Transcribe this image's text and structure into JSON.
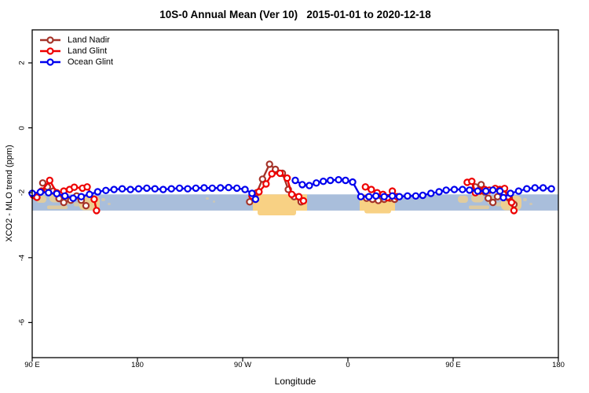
{
  "chart_data": {
    "type": "line",
    "title": "10S-0 Annual Mean (Ver 10)   2015-01-01 to 2020-12-18",
    "xlabel": "Longitude",
    "ylabel": "XCO2 - MLO trend (ppm)",
    "grid": false,
    "legend_position": "top-left",
    "x_axis": {
      "note": "axis spans 450 degrees eastward starting at 90E (wraps past 180 and 0)",
      "range": [
        0,
        450
      ],
      "ticks": [
        {
          "pos": 0,
          "label": "90 E"
        },
        {
          "pos": 90,
          "label": "180"
        },
        {
          "pos": 180,
          "label": "90 W"
        },
        {
          "pos": 270,
          "label": "0"
        },
        {
          "pos": 360,
          "label": "90 E"
        },
        {
          "pos": 450,
          "label": "180"
        }
      ]
    },
    "y_axis": {
      "range": [
        -7.1,
        3.0
      ],
      "tick_values": [
        2,
        0,
        -2,
        -4,
        -6
      ],
      "tick_labels": [
        "2",
        "0",
        "-2",
        "-4",
        "-6"
      ]
    },
    "map_band": {
      "description": "10S-0 latitude strip map drawn as horizontal band",
      "ocean_color": "#a9bedb",
      "land_color": "#f8d184",
      "y_top_ppm": -2.05,
      "y_bottom_ppm": -2.55
    },
    "frame_color": "#000000",
    "marker": "open-circle-white-fill",
    "series": [
      {
        "name": "Land Nadir",
        "color": "#a5342a",
        "segments": [
          [
            [
              9,
              -1.7
            ],
            [
              13,
              -1.82
            ],
            [
              18,
              -1.95
            ],
            [
              23,
              -2.18
            ],
            [
              27,
              -2.3
            ],
            [
              33,
              -2.23
            ],
            [
              38,
              -2.1
            ],
            [
              42,
              -2.23
            ],
            [
              46,
              -2.4
            ]
          ],
          [
            [
              186,
              -2.28
            ],
            [
              192,
              -2.0
            ],
            [
              197,
              -1.58
            ],
            [
              203,
              -1.12
            ],
            [
              208,
              -1.28
            ],
            [
              214,
              -1.4
            ],
            [
              219,
              -1.9
            ],
            [
              224,
              -2.12
            ],
            [
              230,
              -2.28
            ]
          ],
          [
            [
              286,
              -2.17
            ],
            [
              291,
              -2.2
            ],
            [
              296,
              -2.24
            ],
            [
              301,
              -2.2
            ],
            [
              306,
              -2.17
            ],
            [
              310,
              -2.2
            ]
          ],
          [
            [
              379,
              -1.82
            ],
            [
              384,
              -1.75
            ],
            [
              387,
              -1.97
            ],
            [
              390,
              -2.17
            ],
            [
              394,
              -2.3
            ],
            [
              398,
              -2.12
            ],
            [
              403,
              -2.05
            ],
            [
              408,
              -2.17
            ],
            [
              412,
              -2.36
            ]
          ]
        ]
      },
      {
        "name": "Land Glint",
        "color": "#ee0000",
        "segments": [
          [
            [
              1,
              -2.08
            ],
            [
              4,
              -2.14
            ],
            [
              8,
              -1.95
            ],
            [
              15,
              -1.62
            ],
            [
              21,
              -2.0
            ],
            [
              27,
              -1.95
            ],
            [
              32,
              -1.9
            ],
            [
              36,
              -1.83
            ],
            [
              43,
              -1.86
            ],
            [
              47,
              -1.82
            ],
            [
              53,
              -2.2
            ],
            [
              55,
              -2.55
            ]
          ],
          [
            [
              188,
              -2.1
            ],
            [
              194,
              -1.97
            ],
            [
              200,
              -1.73
            ],
            [
              205,
              -1.42
            ],
            [
              212,
              -1.4
            ],
            [
              218,
              -1.55
            ],
            [
              222,
              -2.05
            ],
            [
              228,
              -2.12
            ],
            [
              232,
              -2.25
            ]
          ],
          [
            [
              285,
              -1.82
            ],
            [
              290,
              -1.9
            ],
            [
              295,
              -2.0
            ],
            [
              300,
              -2.05
            ],
            [
              304,
              -2.15
            ],
            [
              308,
              -1.95
            ],
            [
              312,
              -2.12
            ]
          ],
          [
            [
              372,
              -1.68
            ],
            [
              376,
              -1.65
            ],
            [
              379,
              -2.0
            ],
            [
              383,
              -1.95
            ],
            [
              387,
              -1.9
            ],
            [
              391,
              -1.92
            ],
            [
              396,
              -1.87
            ],
            [
              400,
              -1.9
            ],
            [
              404,
              -1.87
            ],
            [
              407,
              -2.12
            ],
            [
              410,
              -2.3
            ],
            [
              412,
              -2.55
            ]
          ]
        ]
      },
      {
        "name": "Ocean Glint",
        "color": "#0000ee",
        "segments": [
          [
            [
              0,
              -2.02
            ],
            [
              7,
              -1.98
            ],
            [
              14,
              -2.0
            ],
            [
              21,
              -2.03
            ],
            [
              28,
              -2.1
            ],
            [
              35,
              -2.17
            ],
            [
              42,
              -2.12
            ],
            [
              49,
              -2.05
            ],
            [
              56,
              -1.97
            ],
            [
              63,
              -1.93
            ],
            [
              70,
              -1.9
            ],
            [
              77,
              -1.88
            ],
            [
              84,
              -1.9
            ],
            [
              91,
              -1.88
            ],
            [
              98,
              -1.86
            ],
            [
              105,
              -1.88
            ],
            [
              112,
              -1.9
            ],
            [
              119,
              -1.88
            ],
            [
              126,
              -1.86
            ],
            [
              133,
              -1.88
            ],
            [
              140,
              -1.86
            ],
            [
              147,
              -1.85
            ],
            [
              154,
              -1.86
            ],
            [
              161,
              -1.85
            ],
            [
              168,
              -1.84
            ],
            [
              175,
              -1.86
            ],
            [
              182,
              -1.9
            ],
            [
              188,
              -2.02
            ],
            [
              191,
              -2.2
            ]
          ],
          [
            [
              225,
              -1.62
            ],
            [
              231,
              -1.75
            ],
            [
              237,
              -1.78
            ],
            [
              243,
              -1.7
            ],
            [
              249,
              -1.65
            ],
            [
              255,
              -1.62
            ],
            [
              262,
              -1.6
            ],
            [
              268,
              -1.62
            ],
            [
              274,
              -1.67
            ],
            [
              281,
              -2.12
            ],
            [
              288,
              -2.12
            ],
            [
              294,
              -2.1
            ],
            [
              301,
              -2.12
            ],
            [
              308,
              -2.1
            ],
            [
              314,
              -2.12
            ],
            [
              321,
              -2.1
            ],
            [
              328,
              -2.1
            ],
            [
              334,
              -2.08
            ],
            [
              341,
              -2.02
            ],
            [
              348,
              -1.97
            ],
            [
              354,
              -1.92
            ],
            [
              361,
              -1.9
            ],
            [
              368,
              -1.9
            ],
            [
              374,
              -1.92
            ],
            [
              381,
              -1.95
            ],
            [
              388,
              -1.95
            ],
            [
              394,
              -1.92
            ],
            [
              400,
              -1.95
            ],
            [
              403,
              -2.15
            ],
            [
              409,
              -2.02
            ],
            [
              416,
              -1.95
            ],
            [
              423,
              -1.88
            ],
            [
              430,
              -1.85
            ],
            [
              437,
              -1.85
            ],
            [
              444,
              -1.88
            ]
          ]
        ]
      }
    ]
  }
}
